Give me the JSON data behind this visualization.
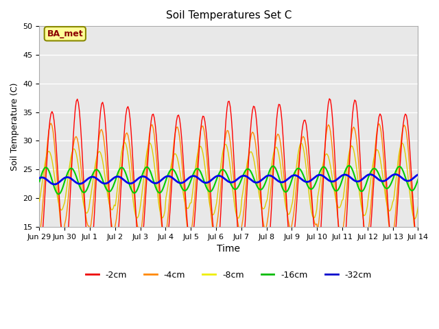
{
  "title": "Soil Temperatures Set C",
  "xlabel": "Time",
  "ylabel": "Soil Temperature (C)",
  "ylim": [
    15,
    50
  ],
  "yticks": [
    15,
    20,
    25,
    30,
    35,
    40,
    45,
    50
  ],
  "xtick_labels": [
    "Jun 29",
    "Jun 30",
    "Jul 1",
    "Jul 2",
    "Jul 3",
    "Jul 4",
    "Jul 5",
    "Jul 6",
    "Jul 7",
    "Jul 8",
    "Jul 9",
    "Jul 10",
    "Jul 11",
    "Jul 12",
    "Jul 13",
    "Jul 14"
  ],
  "colors": {
    "-2cm": "#ff0000",
    "-4cm": "#ff8800",
    "-8cm": "#ddcc00",
    "-16cm": "#00cc00",
    "-32cm": "#0000ee"
  },
  "legend_colors": {
    "-2cm": "#ee0000",
    "-4cm": "#ff8800",
    "-8cm": "#eeee00",
    "-16cm": "#00bb00",
    "-32cm": "#0000cc"
  },
  "bg_color": "#e8e8e8",
  "annotation_text": "BA_met",
  "annotation_bg": "#ffff99",
  "annotation_border": "#888800"
}
